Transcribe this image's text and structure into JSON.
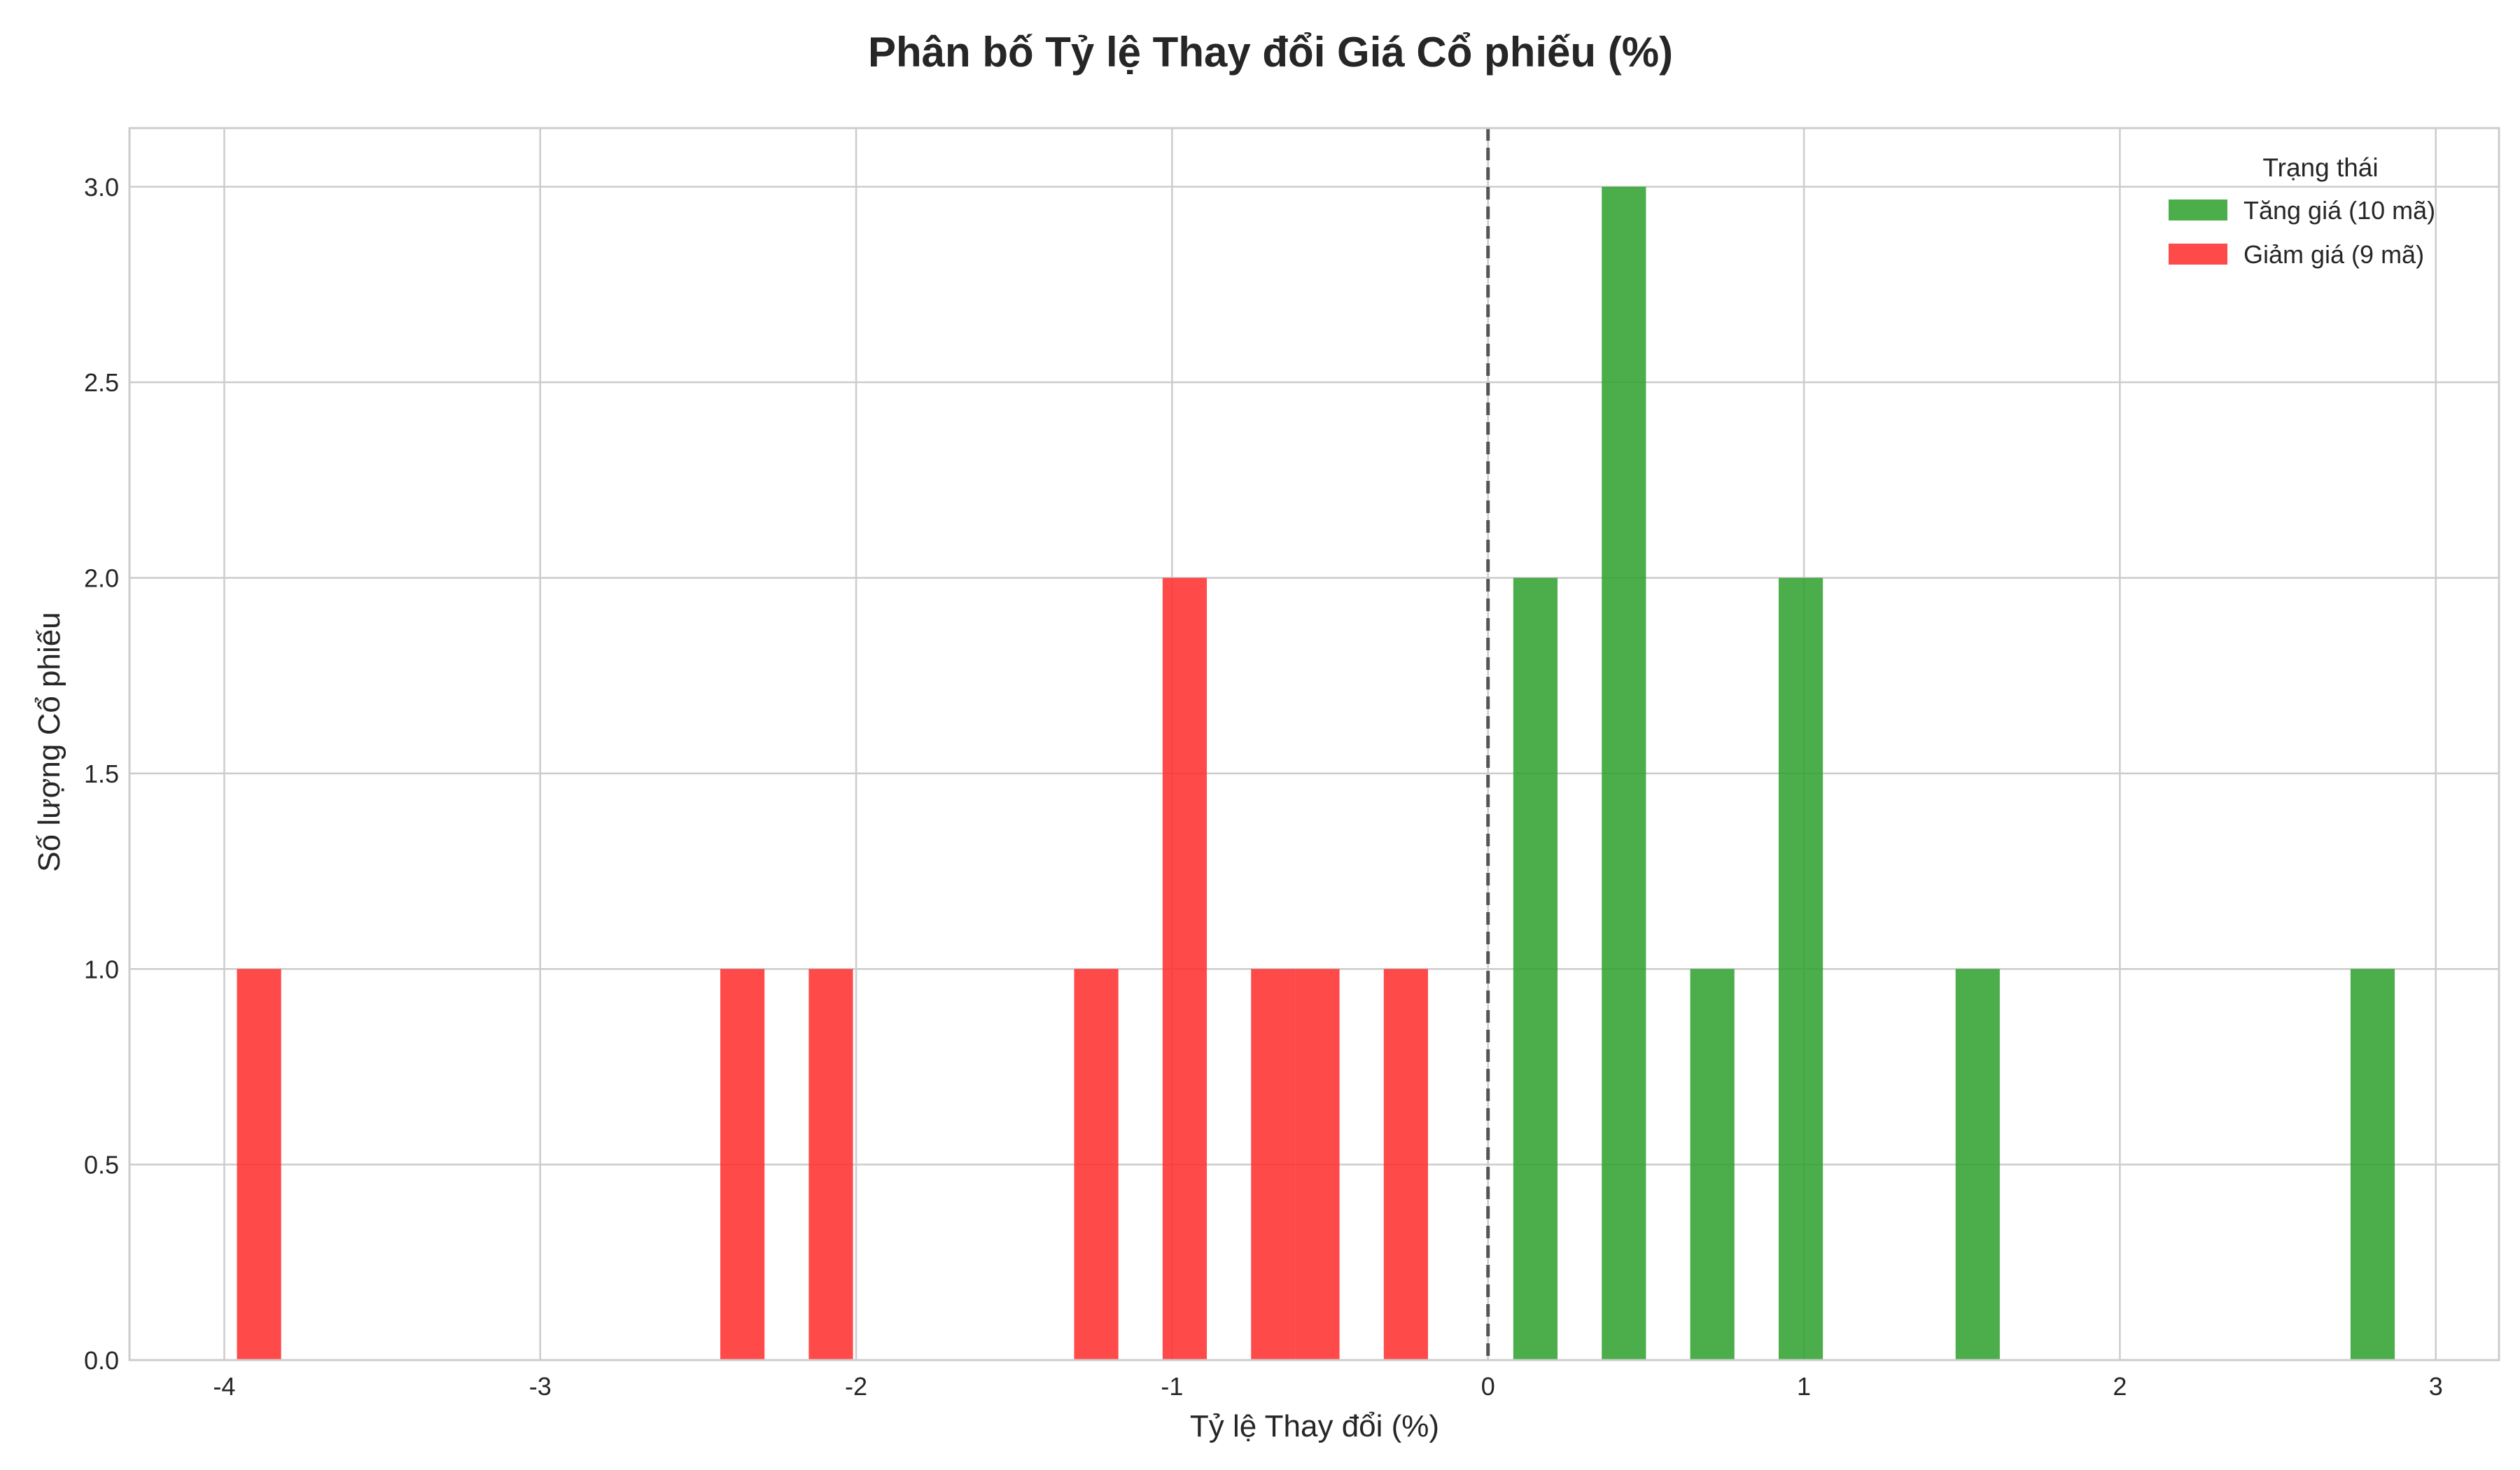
{
  "chart_data": {
    "type": "bar",
    "title": "Phân bố Tỷ lệ Thay đổi Giá Cổ phiếu (%)",
    "xlabel": "Tỷ lệ Thay đổi (%)",
    "ylabel": "Số lượng Cổ phiếu",
    "xlim": [
      -4.3,
      3.2
    ],
    "ylim": [
      0,
      3.15
    ],
    "xticks": [
      -4,
      -3,
      -2,
      -1,
      0,
      1,
      2,
      3
    ],
    "xtick_labels": [
      "-4",
      "-3",
      "-2",
      "-1",
      "0",
      "1",
      "2",
      "3"
    ],
    "yticks": [
      0,
      0.5,
      1,
      1.5,
      2,
      2.5,
      3
    ],
    "ytick_labels": [
      "0.0",
      "0.5",
      "1.0",
      "1.5",
      "2.0",
      "2.5",
      "3.0"
    ],
    "grid": true,
    "reference_line": {
      "x": 0,
      "style": "dashed",
      "color": "#555555"
    },
    "legend": {
      "title": "Trạng thái",
      "placement": "top-right"
    },
    "bin_width": 0.14,
    "series": [
      {
        "name": "Tăng giá (10 mã)",
        "color": "#2ca02c",
        "opacity": 0.85,
        "bins": [
          {
            "x0": 0.08,
            "x1": 0.22,
            "value": 2
          },
          {
            "x0": 0.36,
            "x1": 0.5,
            "value": 3
          },
          {
            "x0": 0.64,
            "x1": 0.78,
            "value": 1
          },
          {
            "x0": 0.92,
            "x1": 1.06,
            "value": 2
          },
          {
            "x0": 1.48,
            "x1": 1.62,
            "value": 1
          },
          {
            "x0": 2.73,
            "x1": 2.87,
            "value": 1
          }
        ]
      },
      {
        "name": "Giảm giá (9 mã)",
        "color": "#ff2a2a",
        "opacity": 0.85,
        "bins": [
          {
            "x0": -3.96,
            "x1": -3.82,
            "value": 1
          },
          {
            "x0": -2.43,
            "x1": -2.29,
            "value": 1
          },
          {
            "x0": -2.15,
            "x1": -2.01,
            "value": 1
          },
          {
            "x0": -1.31,
            "x1": -1.17,
            "value": 1
          },
          {
            "x0": -1.03,
            "x1": -0.89,
            "value": 2
          },
          {
            "x0": -0.75,
            "x1": -0.61,
            "value": 1
          },
          {
            "x0": -0.61,
            "x1": -0.47,
            "value": 1
          },
          {
            "x0": -0.33,
            "x1": -0.19,
            "value": 1
          }
        ]
      }
    ]
  }
}
